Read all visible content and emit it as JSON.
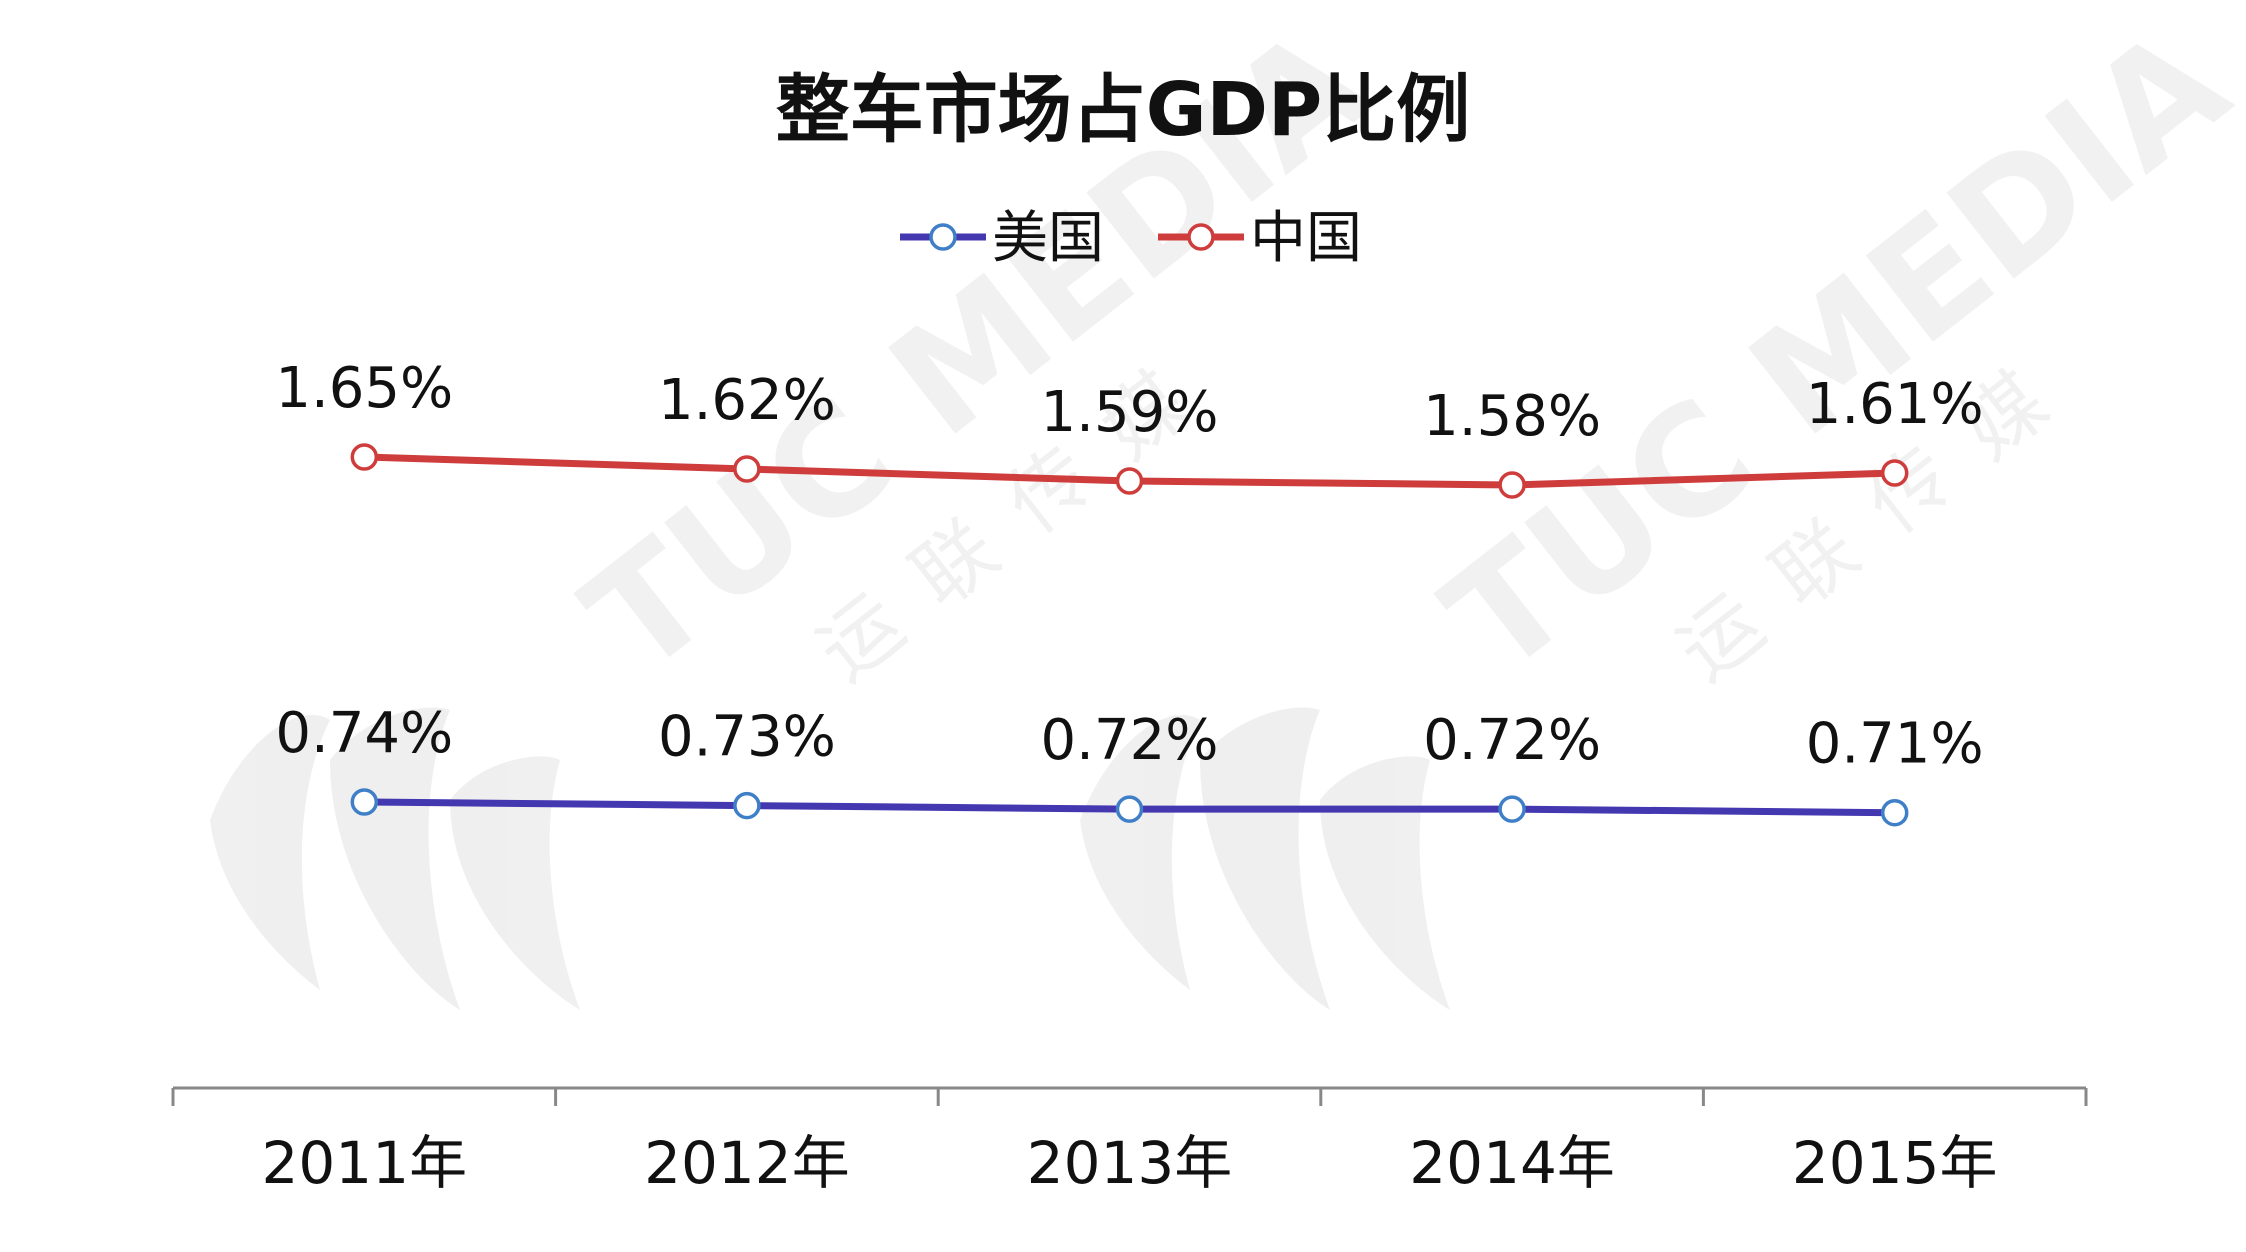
{
  "chart_data": {
    "type": "line",
    "title": "整车市场占GDP比例",
    "xlabel": "",
    "ylabel": "",
    "categories": [
      "2011年",
      "2012年",
      "2013年",
      "2014年",
      "2015年"
    ],
    "series": [
      {
        "name": "美国",
        "values": [
          0.74,
          0.73,
          0.72,
          0.72,
          0.71
        ],
        "labels": [
          "0.74%",
          "0.73%",
          "0.72%",
          "0.72%",
          "0.71%"
        ],
        "color": "#4338b0",
        "marker_color": "#3f7fc8"
      },
      {
        "name": "中国",
        "values": [
          1.65,
          1.62,
          1.59,
          1.58,
          1.61
        ],
        "labels": [
          "1.65%",
          "1.62%",
          "1.59%",
          "1.58%",
          "1.61%"
        ],
        "color": "#cf3c3c",
        "marker_color": "#cf3c3c"
      }
    ],
    "ylim": [
      0,
      2
    ],
    "grid": false,
    "legend": "top"
  },
  "watermark": {
    "brand": "TUC MEDIA",
    "cn": "运联传媒"
  }
}
